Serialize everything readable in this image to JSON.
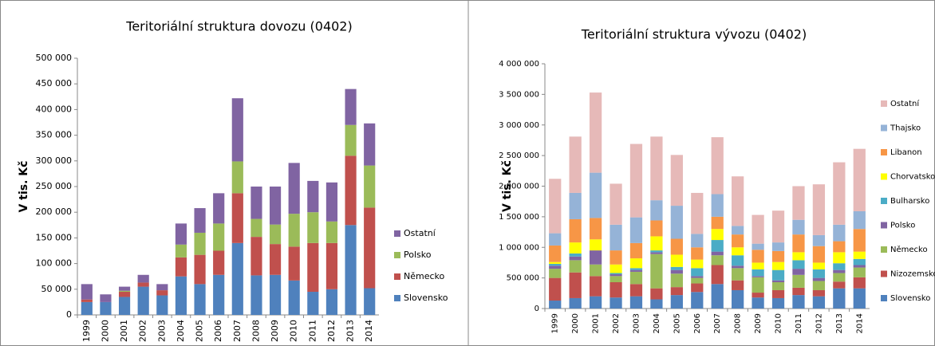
{
  "chart_data": [
    {
      "type": "bar",
      "stacked": true,
      "title": "Teritoriální struktura dovozu (0402)",
      "y_label": "V tis. Kč",
      "categories": [
        "1999",
        "2000",
        "2001",
        "2002",
        "2003",
        "2004",
        "2005",
        "2006",
        "2007",
        "2008",
        "2009",
        "2010",
        "2011",
        "2012",
        "2013",
        "2014"
      ],
      "series": [
        {
          "name": "Slovensko",
          "color": "#4f81bd",
          "values": [
            25000,
            25000,
            35000,
            55000,
            38000,
            75000,
            60000,
            78000,
            140000,
            77000,
            78000,
            67000,
            45000,
            50000,
            175000,
            52000
          ]
        },
        {
          "name": "Německo",
          "color": "#c0504d",
          "values": [
            5000,
            0,
            10000,
            8000,
            10000,
            37000,
            57000,
            47000,
            97000,
            75000,
            60000,
            66000,
            95000,
            90000,
            135000,
            157000
          ]
        },
        {
          "name": "Polsko",
          "color": "#9bbb59",
          "values": [
            0,
            0,
            2000,
            0,
            0,
            25000,
            43000,
            53000,
            62000,
            35000,
            38000,
            64000,
            60000,
            42000,
            60000,
            82000
          ]
        },
        {
          "name": "Ostatní",
          "color": "#8064a2",
          "values": [
            30000,
            15000,
            8000,
            15000,
            12000,
            41000,
            48000,
            59000,
            123000,
            63000,
            74000,
            99000,
            61000,
            76000,
            70000,
            82000
          ]
        }
      ],
      "ylim": [
        0,
        500000
      ],
      "yticks": [
        0,
        {
          "value": 50000,
          "label": "50 000"
        },
        {
          "value": 100000,
          "label": "100 000"
        },
        {
          "value": 150000,
          "label": "150 000"
        },
        {
          "value": 200000,
          "label": "200 000"
        },
        {
          "value": 250000,
          "label": "250 000"
        },
        {
          "value": 300000,
          "label": "300 000"
        },
        {
          "value": 350000,
          "label": "350 000"
        },
        {
          "value": 400000,
          "label": "400 000"
        },
        {
          "value": 450000,
          "label": "450 000"
        },
        {
          "value": 500000,
          "label": "500 000"
        }
      ],
      "grid": false,
      "legend": "right"
    },
    {
      "type": "bar",
      "stacked": true,
      "title": "Teritoriální struktura vývozu (0402)",
      "y_label": "V tis. Kč",
      "categories": [
        "1999",
        "2000",
        "2001",
        "2002",
        "2003",
        "2004",
        "2005",
        "2006",
        "2007",
        "2008",
        "2009",
        "2010",
        "2011",
        "2012",
        "2013",
        "2014"
      ],
      "series": [
        {
          "name": "Slovensko",
          "color": "#4f81bd",
          "values": [
            130000,
            170000,
            200000,
            180000,
            200000,
            150000,
            220000,
            270000,
            400000,
            300000,
            180000,
            170000,
            220000,
            200000,
            330000,
            330000
          ]
        },
        {
          "name": "Nizozemsko",
          "color": "#c0504d",
          "values": [
            370000,
            420000,
            330000,
            250000,
            200000,
            180000,
            130000,
            140000,
            310000,
            160000,
            80000,
            130000,
            120000,
            100000,
            110000,
            180000
          ]
        },
        {
          "name": "Německo",
          "color": "#9bbb59",
          "values": [
            150000,
            200000,
            190000,
            100000,
            200000,
            560000,
            220000,
            90000,
            160000,
            200000,
            250000,
            130000,
            210000,
            150000,
            140000,
            160000
          ]
        },
        {
          "name": "Polsko",
          "color": "#8064a2",
          "values": [
            50000,
            60000,
            230000,
            30000,
            30000,
            30000,
            60000,
            30000,
            60000,
            40000,
            20000,
            30000,
            100000,
            50000,
            50000,
            40000
          ]
        },
        {
          "name": "Bulharsko",
          "color": "#4bacc6",
          "values": [
            30000,
            50000,
            0,
            20000,
            30000,
            30000,
            50000,
            130000,
            190000,
            170000,
            110000,
            170000,
            140000,
            140000,
            110000,
            100000
          ]
        },
        {
          "name": "Chorvatsko",
          "color": "#ffff00",
          "values": [
            30000,
            180000,
            180000,
            140000,
            160000,
            230000,
            200000,
            140000,
            180000,
            130000,
            110000,
            130000,
            130000,
            110000,
            180000,
            120000
          ]
        },
        {
          "name": "Libanon",
          "color": "#f79646",
          "values": [
            270000,
            380000,
            350000,
            230000,
            250000,
            260000,
            260000,
            200000,
            200000,
            210000,
            210000,
            180000,
            290000,
            270000,
            180000,
            370000
          ]
        },
        {
          "name": "Thajsko",
          "color": "#95b3d7",
          "values": [
            200000,
            430000,
            740000,
            420000,
            420000,
            330000,
            540000,
            220000,
            370000,
            140000,
            100000,
            140000,
            240000,
            180000,
            270000,
            290000
          ]
        },
        {
          "name": "Ostatní",
          "color": "#e6b9b8",
          "values": [
            890000,
            920000,
            1310000,
            670000,
            1200000,
            1040000,
            830000,
            670000,
            930000,
            810000,
            470000,
            520000,
            550000,
            830000,
            1020000,
            1020000
          ]
        }
      ],
      "ylim": [
        0,
        4000000
      ],
      "yticks": [
        0,
        {
          "value": 500000,
          "label": "500 000"
        },
        {
          "value": 1000000,
          "label": "1 000 000"
        },
        {
          "value": 1500000,
          "label": "1 500 000"
        },
        {
          "value": 2000000,
          "label": "2 000 000"
        },
        {
          "value": 2500000,
          "label": "2 500 000"
        },
        {
          "value": 3000000,
          "label": "3 000 000"
        },
        {
          "value": 3500000,
          "label": "3 500 000"
        },
        {
          "value": 4000000,
          "label": "4 000 000"
        }
      ],
      "grid": false,
      "legend": "right"
    }
  ]
}
